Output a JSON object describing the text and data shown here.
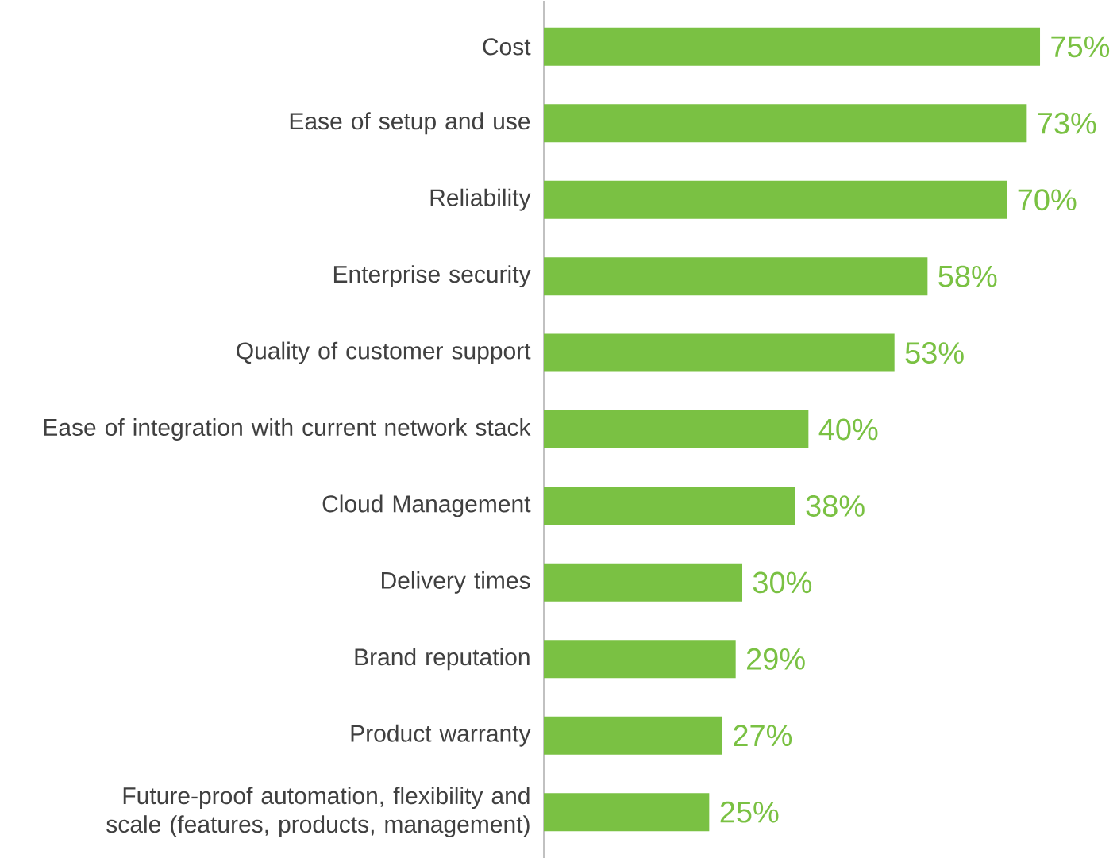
{
  "chart_data": {
    "type": "bar",
    "orientation": "horizontal",
    "color": "#7ac143",
    "categories": [
      "Cost",
      "Ease of setup and use",
      "Reliability",
      "Enterprise security",
      "Quality of customer support",
      "Ease of integration with current network stack",
      "Cloud Management",
      "Delivery times",
      "Brand reputation",
      "Product warranty",
      "Future-proof automation, flexibility and scale (features, products, management)"
    ],
    "values": [
      75,
      73,
      70,
      58,
      53,
      40,
      38,
      30,
      29,
      27,
      25
    ],
    "value_labels": [
      "75%",
      "73%",
      "70%",
      "58%",
      "53%",
      "40%",
      "38%",
      "30%",
      "29%",
      "27%",
      "25%"
    ]
  }
}
